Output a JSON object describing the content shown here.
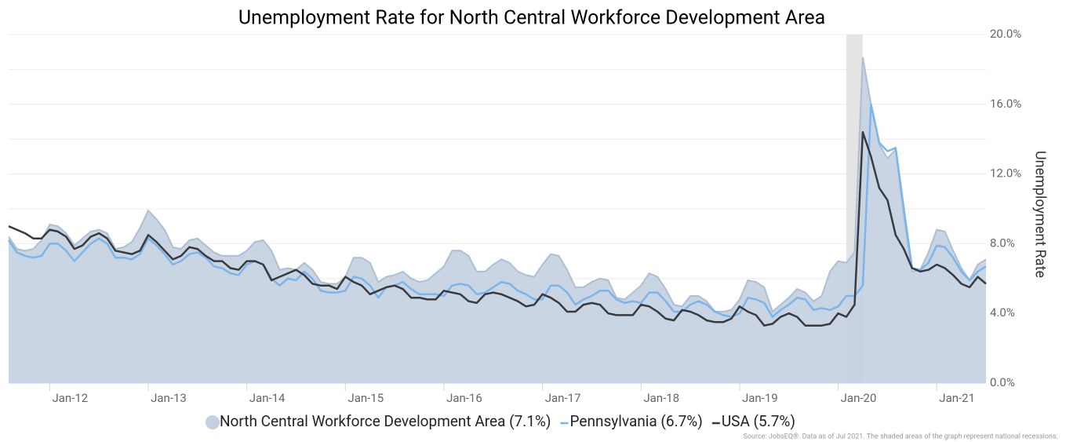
{
  "chart_data": {
    "type": "line",
    "title": "Unemployment Rate for North Central Workforce Development Area",
    "y_axis_label": "Unemployment Rate",
    "source": "Source: JobsEQ®. Data as of Jul 2021. The shaded areas of the graph represent national recessions.",
    "categories": [
      null,
      null,
      null,
      null,
      null,
      "Jan-12",
      null,
      null,
      null,
      null,
      null,
      null,
      null,
      null,
      null,
      null,
      null,
      "Jan-13",
      null,
      null,
      null,
      null,
      null,
      null,
      null,
      null,
      null,
      null,
      null,
      "Jan-14",
      null,
      null,
      null,
      null,
      null,
      null,
      null,
      null,
      null,
      null,
      null,
      "Jan-15",
      null,
      null,
      null,
      null,
      null,
      null,
      null,
      null,
      null,
      null,
      null,
      "Jan-16",
      null,
      null,
      null,
      null,
      null,
      null,
      null,
      null,
      null,
      null,
      null,
      "Jan-17",
      null,
      null,
      null,
      null,
      null,
      null,
      null,
      null,
      null,
      null,
      null,
      "Jan-18",
      null,
      null,
      null,
      null,
      null,
      null,
      null,
      null,
      null,
      null,
      null,
      "Jan-19",
      null,
      null,
      null,
      null,
      null,
      null,
      null,
      null,
      null,
      null,
      null,
      "Jan-20",
      null,
      null,
      null,
      null,
      null,
      null,
      null,
      null,
      null,
      null,
      null,
      "Jan-21",
      null,
      null,
      null,
      null,
      null,
      null
    ],
    "series": [
      {
        "name": "North Central Workforce Development Area (7.1%)",
        "color": "#c3d0e0",
        "style": "area",
        "values": [
          8.4,
          7.7,
          7.6,
          7.7,
          8.2,
          9.1,
          9.0,
          8.6,
          7.9,
          8.3,
          8.7,
          8.8,
          8.6,
          7.7,
          7.8,
          8.1,
          8.9,
          9.9,
          9.4,
          8.8,
          7.8,
          7.7,
          8.2,
          8.3,
          7.9,
          7.5,
          7.3,
          7.3,
          7.3,
          7.6,
          8.1,
          8.2,
          7.6,
          6.5,
          6.6,
          6.5,
          6.9,
          6.5,
          5.8,
          5.7,
          5.7,
          6.1,
          7.2,
          7.2,
          6.9,
          5.8,
          6.1,
          6.2,
          6.4,
          6.0,
          5.8,
          5.9,
          6.3,
          6.7,
          7.6,
          7.6,
          7.3,
          6.4,
          6.4,
          6.8,
          7.1,
          6.9,
          6.4,
          6.2,
          6.1,
          6.8,
          7.4,
          7.3,
          6.5,
          5.5,
          5.5,
          5.8,
          6.0,
          5.9,
          4.9,
          4.8,
          5.2,
          5.6,
          6.3,
          6.1,
          5.4,
          4.5,
          4.4,
          5.0,
          5.0,
          4.7,
          4.1,
          4.1,
          4.2,
          4.8,
          5.9,
          5.8,
          5.5,
          4.1,
          4.5,
          4.9,
          5.4,
          5.2,
          4.7,
          5.0,
          6.4,
          7.0,
          6.9,
          7.5,
          18.7,
          16.0,
          13.7,
          12.9,
          13.4,
          9.5,
          6.4,
          6.5,
          7.5,
          8.8,
          8.7,
          7.6,
          6.6,
          5.9,
          6.8,
          7.1
        ]
      },
      {
        "name": "Pennsylvania (6.7%)",
        "color": "#7cb5ec",
        "style": "line",
        "values": [
          8.2,
          7.5,
          7.3,
          7.2,
          7.3,
          8.0,
          8.0,
          7.6,
          7.0,
          7.5,
          8.0,
          8.3,
          8.0,
          7.2,
          7.2,
          7.1,
          7.4,
          8.3,
          7.9,
          7.4,
          6.8,
          7.0,
          7.4,
          7.5,
          7.2,
          6.7,
          6.6,
          6.3,
          6.2,
          6.8,
          7.0,
          6.8,
          6.0,
          5.6,
          6.0,
          5.9,
          6.4,
          6.0,
          5.3,
          5.2,
          5.2,
          5.3,
          6.1,
          6.0,
          5.6,
          4.9,
          5.5,
          5.6,
          5.8,
          5.4,
          5.1,
          5.1,
          5.1,
          5.0,
          5.6,
          5.7,
          5.6,
          5.1,
          5.2,
          5.5,
          5.8,
          5.7,
          5.3,
          5.1,
          4.8,
          4.8,
          5.6,
          5.6,
          5.2,
          4.5,
          4.8,
          5.0,
          5.3,
          5.3,
          4.8,
          4.6,
          4.7,
          4.6,
          5.2,
          5.2,
          4.7,
          4.1,
          4.1,
          4.5,
          4.7,
          4.5,
          4.1,
          3.9,
          3.8,
          4.0,
          4.9,
          4.8,
          4.6,
          3.8,
          4.2,
          4.5,
          4.9,
          4.8,
          4.2,
          4.3,
          4.2,
          4.4,
          5.0,
          5.0,
          5.6,
          16.0,
          13.8,
          13.3,
          13.5,
          10.0,
          6.6,
          6.5,
          6.9,
          7.9,
          7.8,
          7.2,
          6.4,
          5.9,
          6.4,
          6.7
        ]
      },
      {
        "name": "USA (5.7%)",
        "color": "#3a3a3e",
        "style": "line",
        "values": [
          9.0,
          8.8,
          8.6,
          8.3,
          8.3,
          8.8,
          8.7,
          8.4,
          7.7,
          7.9,
          8.4,
          8.6,
          8.3,
          7.6,
          7.5,
          7.4,
          7.6,
          8.5,
          8.1,
          7.6,
          7.1,
          7.3,
          7.8,
          7.7,
          7.3,
          7.0,
          7.0,
          6.6,
          6.5,
          7.0,
          7.0,
          6.8,
          5.9,
          6.1,
          6.3,
          6.5,
          6.2,
          5.7,
          5.6,
          5.6,
          5.4,
          6.1,
          5.8,
          5.6,
          5.1,
          5.3,
          5.5,
          5.6,
          5.4,
          4.9,
          4.9,
          4.8,
          4.8,
          5.3,
          5.2,
          5.1,
          4.7,
          4.6,
          5.1,
          5.2,
          5.1,
          4.9,
          4.7,
          4.4,
          4.5,
          5.1,
          4.9,
          4.6,
          4.1,
          4.1,
          4.5,
          4.6,
          4.5,
          4.0,
          3.9,
          3.9,
          3.9,
          4.5,
          4.4,
          4.1,
          3.7,
          3.6,
          4.2,
          4.1,
          3.9,
          3.6,
          3.5,
          3.5,
          3.7,
          4.4,
          4.1,
          3.9,
          3.3,
          3.4,
          3.8,
          4.0,
          3.8,
          3.3,
          3.3,
          3.3,
          3.4,
          4.0,
          3.8,
          4.5,
          14.4,
          13.0,
          11.2,
          10.5,
          8.5,
          7.7,
          6.6,
          6.4,
          6.5,
          6.8,
          6.6,
          6.2,
          5.7,
          5.5,
          6.1,
          5.7
        ]
      }
    ],
    "recessions": [
      [
        102,
        104
      ]
    ],
    "ylim": [
      0,
      20
    ],
    "yticks": [
      {
        "value": 0,
        "label": "0.0%"
      },
      {
        "value": 4,
        "label": "4.0%"
      },
      {
        "value": 8,
        "label": "8.0%"
      },
      {
        "value": 12,
        "label": "12.0%"
      },
      {
        "value": 16,
        "label": "16.0%"
      },
      {
        "value": 20,
        "label": "20.0%"
      }
    ],
    "minor_yticks": [
      2,
      6,
      10,
      14,
      18
    ],
    "grid": true
  }
}
